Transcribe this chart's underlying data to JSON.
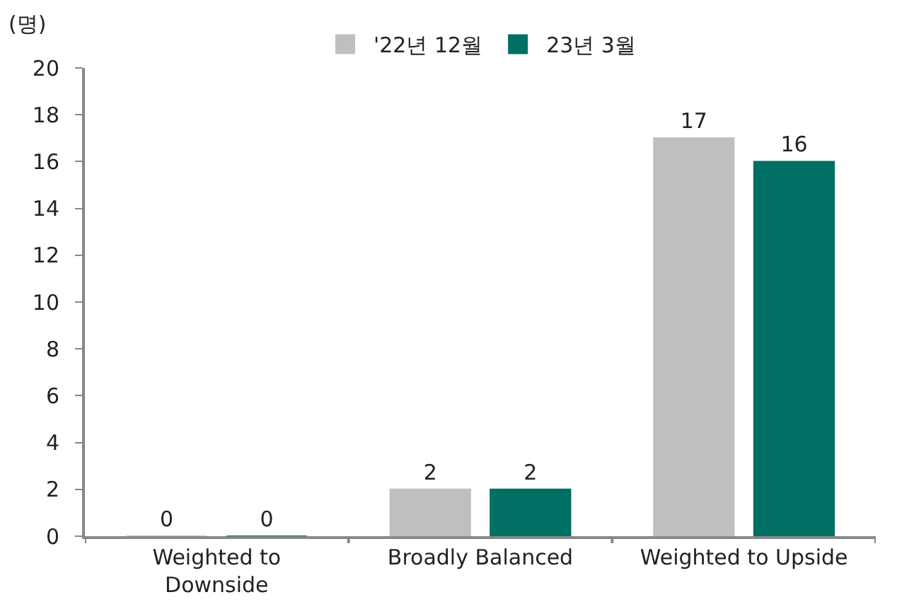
{
  "chart_data": {
    "type": "bar",
    "ylabel": "(명)",
    "categories": [
      "Weighted to Downside",
      "Broadly Balanced",
      "Weighted to Upside"
    ],
    "series": [
      {
        "name": "'22년 12월",
        "color": "#bfbfbf",
        "values": [
          0,
          2,
          17
        ]
      },
      {
        "name": "23년 3월",
        "color": "#006f64",
        "values": [
          0,
          2,
          16
        ]
      }
    ],
    "ylim": [
      0,
      20
    ],
    "yticks": [
      0,
      2,
      4,
      6,
      8,
      10,
      12,
      14,
      16,
      18,
      20
    ],
    "data_labels": true,
    "legend": "top"
  }
}
